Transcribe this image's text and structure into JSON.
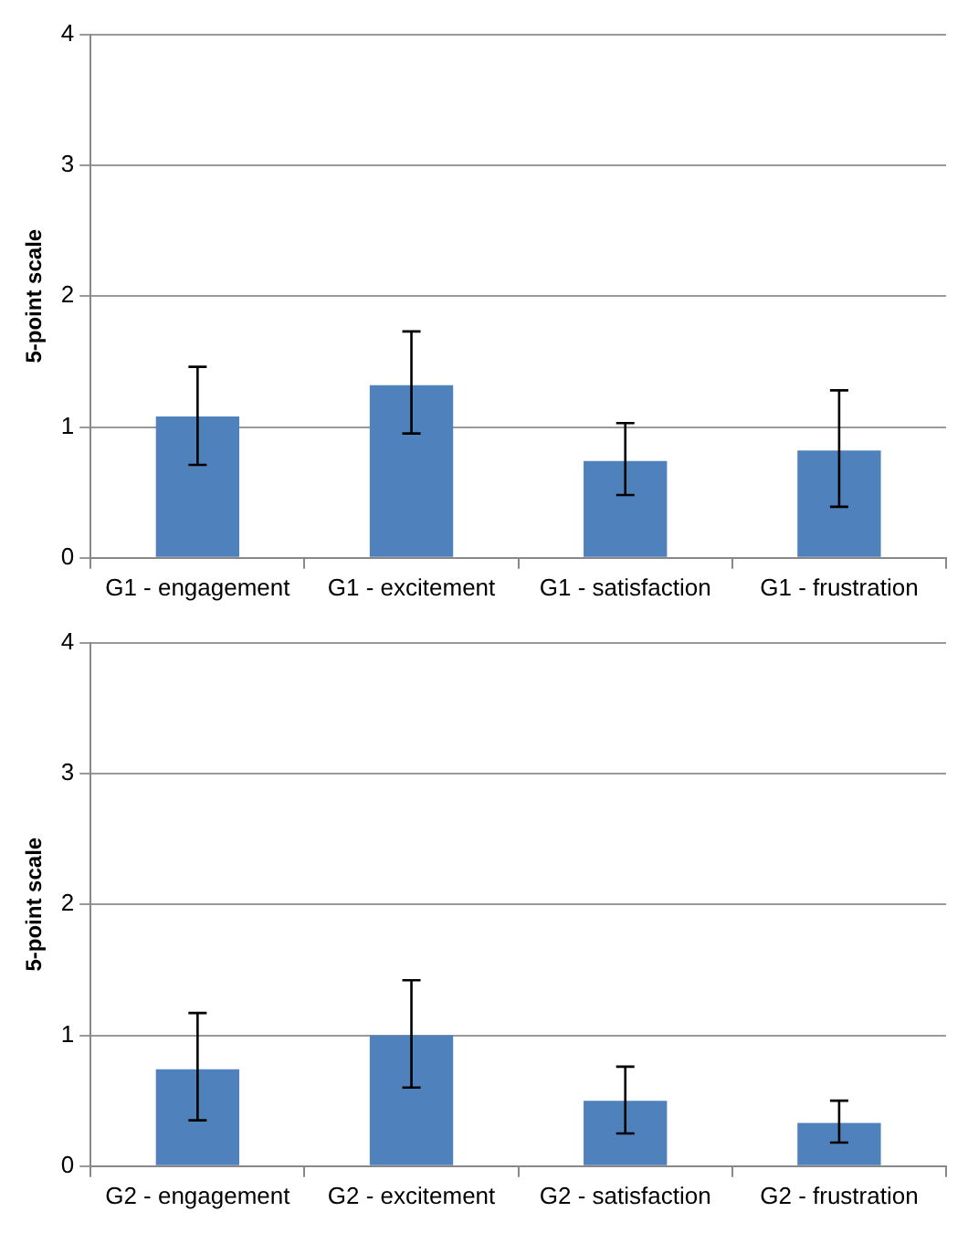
{
  "chart_data": [
    {
      "type": "bar",
      "ylabel": "5-point scale",
      "categories": [
        "G1 - engagement",
        "G1 - excitement",
        "G1 - satisfaction",
        "G1 - frustration"
      ],
      "values": [
        1.08,
        1.32,
        0.74,
        0.82
      ],
      "color": "#4f81bd",
      "errors": [
        [
          0.71,
          1.46
        ],
        [
          0.95,
          1.73
        ],
        [
          0.48,
          1.03
        ],
        [
          0.39,
          1.28
        ]
      ],
      "ylim": [
        0,
        4
      ],
      "yticks": [
        0,
        1,
        2,
        3,
        4
      ],
      "grid": "y"
    },
    {
      "type": "bar",
      "ylabel": "5-point scale",
      "categories": [
        "G2 - engagement",
        "G2 - excitement",
        "G2 - satisfaction",
        "G2 - frustration"
      ],
      "values": [
        0.74,
        1.0,
        0.5,
        0.33
      ],
      "color": "#4f81bd",
      "errors": [
        [
          0.35,
          1.17
        ],
        [
          0.6,
          1.42
        ],
        [
          0.25,
          0.76
        ],
        [
          0.18,
          0.5
        ]
      ],
      "ylim": [
        0,
        4
      ],
      "yticks": [
        0,
        1,
        2,
        3,
        4
      ],
      "grid": "y"
    }
  ]
}
